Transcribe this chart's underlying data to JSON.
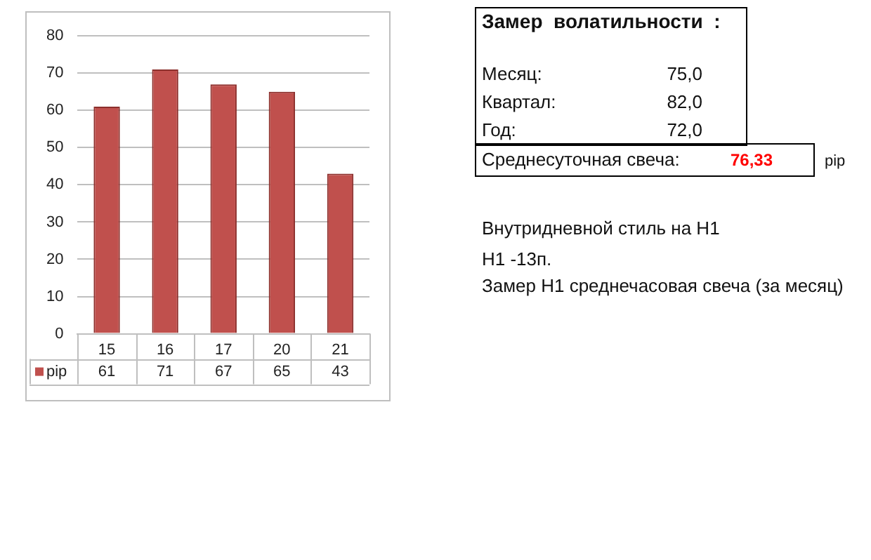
{
  "chart_data": {
    "type": "bar",
    "categories": [
      "15",
      "16",
      "17",
      "20",
      "21"
    ],
    "series": [
      {
        "name": "pip",
        "color": "#c0504d",
        "values": [
          61,
          71,
          67,
          65,
          43
        ]
      }
    ],
    "ylim": [
      0,
      80
    ],
    "yticks": [
      0,
      10,
      20,
      30,
      40,
      50,
      60,
      70,
      80
    ],
    "grid": "y",
    "data_labels": true,
    "legend": "bottom left",
    "annotations": [
      "Замер  волатильности  :",
      "Месяц:",
      "75,0",
      "Квартал:",
      "82,0",
      "Год:",
      "72,0",
      "Среднесуточная свеча:",
      "76,33",
      "pip",
      "Внутридневной стиль на H1",
      "H1 -13п.",
      "Замер H1 среднечасовая свеча (за месяц)"
    ]
  }
}
